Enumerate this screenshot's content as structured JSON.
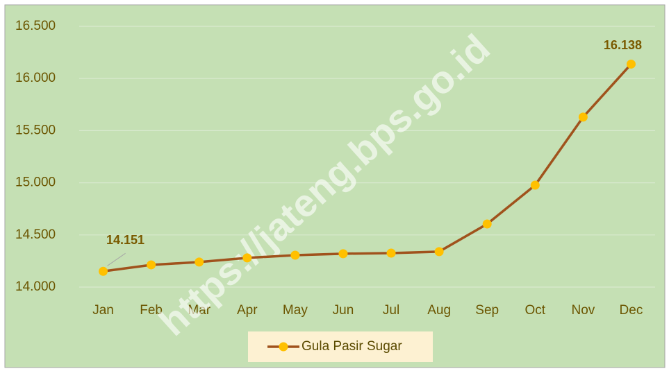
{
  "chart_data": {
    "type": "line",
    "categories": [
      "Jan",
      "Feb",
      "Mar",
      "Apr",
      "May",
      "Jun",
      "Jul",
      "Aug",
      "Sep",
      "Oct",
      "Nov",
      "Dec"
    ],
    "series": [
      {
        "name": "Gula Pasir Sugar",
        "color": "#a0521c",
        "marker_color": "#ffc000",
        "values": [
          14151,
          14213,
          14240,
          14280,
          14306,
          14320,
          14326,
          14340,
          14605,
          14977,
          15630,
          16138
        ],
        "value_labels": [
          "14.151",
          null,
          null,
          null,
          null,
          null,
          null,
          null,
          null,
          null,
          null,
          "16.138"
        ]
      }
    ],
    "ylim": [
      14000,
      16500
    ],
    "yticks": [
      {
        "value": 14000,
        "label": "14.000"
      },
      {
        "value": 14500,
        "label": "14.500"
      },
      {
        "value": 15000,
        "label": "15.000"
      },
      {
        "value": 15500,
        "label": "15.500"
      },
      {
        "value": 16000,
        "label": "16.000"
      },
      {
        "value": 16500,
        "label": "16.500"
      }
    ],
    "grid": true,
    "legend": "bottom",
    "watermark": "https://jateng.bps.go.id"
  }
}
